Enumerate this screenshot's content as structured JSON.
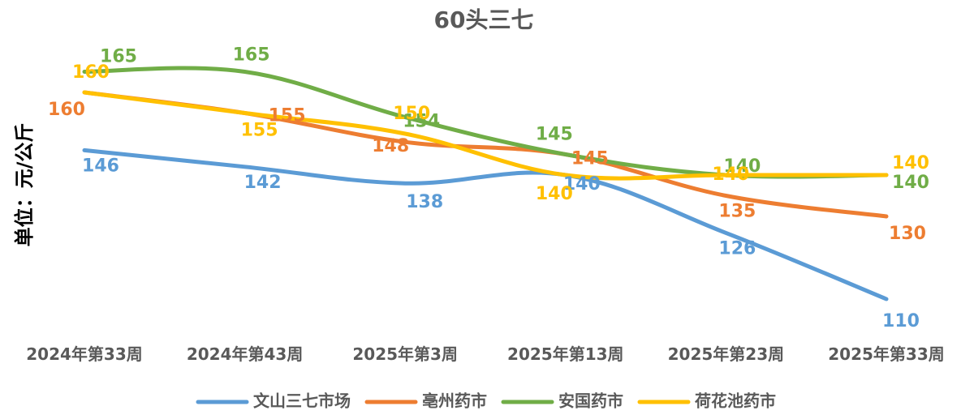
{
  "chart_data": {
    "type": "line",
    "title": "60头三七",
    "ylabel": "单位：元/公斤",
    "xlabel": "",
    "categories": [
      "2024年第33周",
      "2024年第43周",
      "2025年第3周",
      "2025年第13周",
      "2025年第23周",
      "2025年第33周"
    ],
    "ylim": [
      100,
      170
    ],
    "grid": false,
    "legend_position": "bottom",
    "smooth": true,
    "series": [
      {
        "name": "文山三七市场",
        "color": "#5B9BD5",
        "values": [
          146,
          142,
          138,
          140,
          126,
          110
        ]
      },
      {
        "name": "亳州药市",
        "color": "#ED7D31",
        "values": [
          160,
          155,
          148,
          145,
          135,
          130
        ]
      },
      {
        "name": "安国药市",
        "color": "#70AD47",
        "values": [
          165,
          165,
          154,
          145,
          140,
          140
        ]
      },
      {
        "name": "荷花池药市",
        "color": "#FFC000",
        "values": [
          160,
          155,
          150,
          140,
          140,
          140
        ]
      }
    ]
  }
}
